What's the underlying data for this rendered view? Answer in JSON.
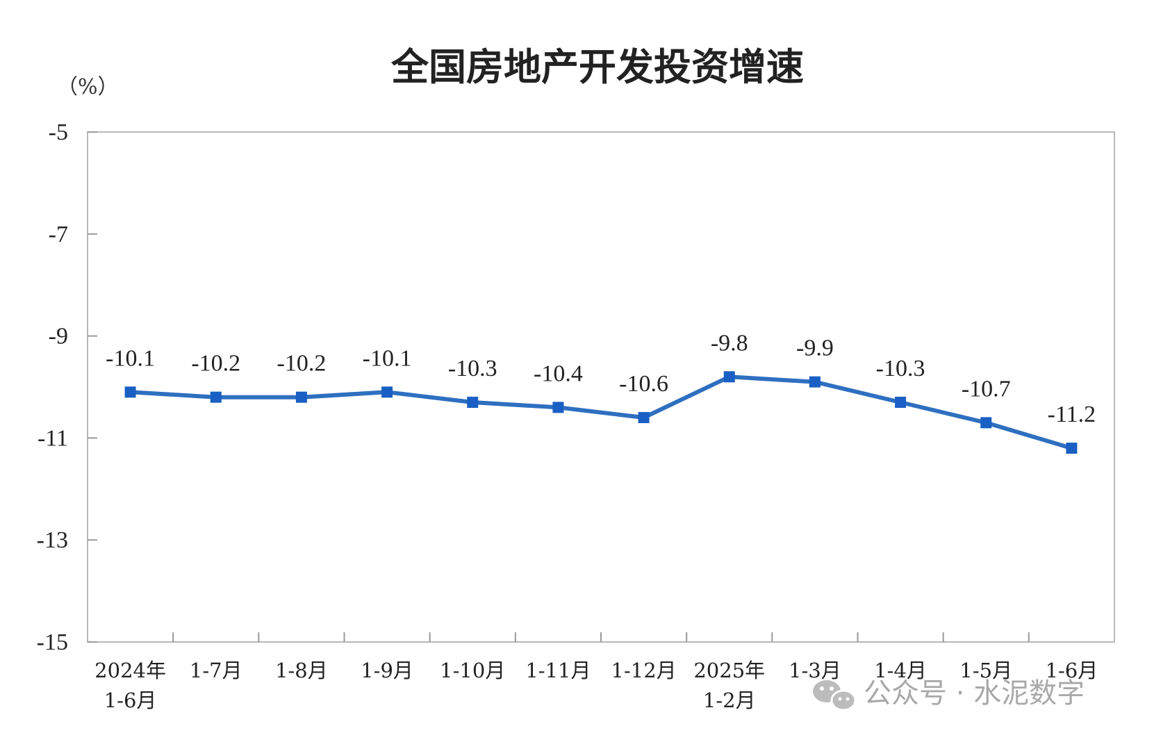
{
  "chart_data": {
    "type": "line",
    "title": "全国房地产开发投资增速",
    "unit_label": "（%）",
    "categories": [
      [
        "2024年",
        "1-6月"
      ],
      [
        "1-7月"
      ],
      [
        "1-8月"
      ],
      [
        "1-9月"
      ],
      [
        "1-10月"
      ],
      [
        "1-11月"
      ],
      [
        "1-12月"
      ],
      [
        "2025年",
        "1-2月"
      ],
      [
        "1-3月"
      ],
      [
        "1-4月"
      ],
      [
        "1-5月"
      ],
      [
        "1-6月"
      ]
    ],
    "series": [
      {
        "values": [
          -10.1,
          -10.2,
          -10.2,
          -10.1,
          -10.3,
          -10.4,
          -10.6,
          -9.8,
          -9.9,
          -10.3,
          -10.7,
          -11.2
        ]
      }
    ],
    "data_labels": [
      "-10.1",
      "-10.2",
      "-10.2",
      "-10.1",
      "-10.3",
      "-10.4",
      "-10.6",
      "-9.8",
      "-9.9",
      "-10.3",
      "-10.7",
      "-11.2"
    ],
    "y_ticks": [
      -5,
      -7,
      -9,
      -11,
      -13,
      -15
    ],
    "ylim": [
      -15,
      -5
    ],
    "grid": false,
    "line_color": "#2e6fc0",
    "marker_color": "#1a5fc4"
  },
  "watermark": {
    "icon": "wechat-icon",
    "text": "公众号 · 水泥数字"
  }
}
